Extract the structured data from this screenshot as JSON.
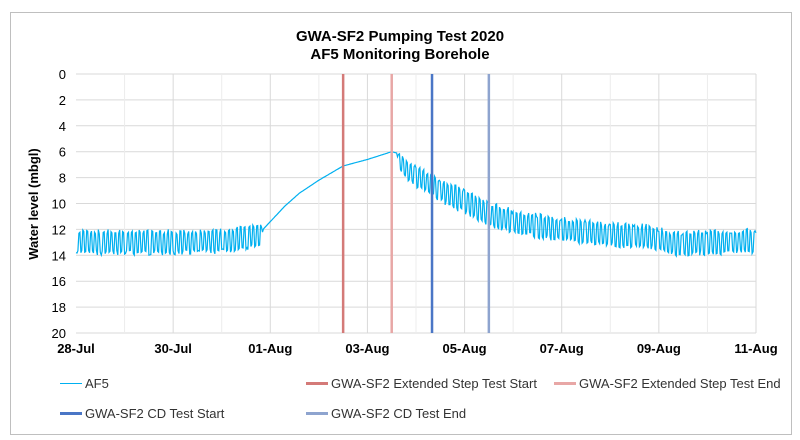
{
  "chart_data": {
    "type": "line",
    "title": [
      "GWA-SF2 Pumping Test 2020",
      "AF5 Monitoring Borehole"
    ],
    "xlabel": "",
    "ylabel": "Water level (mbgl)",
    "x_unit": "days since 28-Jul",
    "xlim": [
      0,
      14
    ],
    "ylim": [
      0,
      20
    ],
    "y_inverted": true,
    "y_ticks": [
      "0",
      "2",
      "4",
      "6",
      "8",
      "10",
      "12",
      "14",
      "16",
      "18",
      "20"
    ],
    "x_ticks": [
      {
        "x": 0,
        "label": "28-Jul"
      },
      {
        "x": 2,
        "label": "30-Jul"
      },
      {
        "x": 4,
        "label": "01-Aug"
      },
      {
        "x": 6,
        "label": "03-Aug"
      },
      {
        "x": 8,
        "label": "05-Aug"
      },
      {
        "x": 10,
        "label": "07-Aug"
      },
      {
        "x": 12,
        "label": "09-Aug"
      },
      {
        "x": 14,
        "label": "11-Aug"
      }
    ],
    "grid": true,
    "series": [
      {
        "name": "AF5",
        "color": "#00b0f0",
        "points_x_level_oscillation": [
          [
            0,
            13.0,
            1.0
          ],
          [
            1,
            13.0,
            1.0
          ],
          [
            2,
            13.0,
            1.0
          ],
          [
            3,
            12.9,
            1.0
          ],
          [
            3.8,
            12.5,
            0.9
          ],
          [
            3.85,
            12.0,
            0
          ],
          [
            4.1,
            11.0,
            0
          ],
          [
            4.3,
            10.2,
            0
          ],
          [
            4.6,
            9.2,
            0
          ],
          [
            5.0,
            8.2,
            0
          ],
          [
            5.5,
            7.1,
            0
          ],
          [
            6.0,
            6.6,
            0
          ],
          [
            6.5,
            6.0,
            0
          ],
          [
            6.6,
            6.1,
            0
          ],
          [
            6.7,
            7.0,
            0.8
          ],
          [
            7.0,
            7.9,
            0.9
          ],
          [
            7.33,
            8.6,
            0.9
          ],
          [
            7.7,
            9.4,
            1.0
          ],
          [
            8.0,
            9.8,
            1.0
          ],
          [
            8.5,
            10.8,
            1.0
          ],
          [
            9.0,
            11.4,
            1.0
          ],
          [
            10.0,
            12.0,
            1.0
          ],
          [
            11.0,
            12.4,
            1.0
          ],
          [
            11.9,
            12.6,
            1.0
          ],
          [
            12.2,
            13.1,
            1.0
          ],
          [
            13.0,
            13.0,
            1.0
          ],
          [
            14.0,
            12.9,
            1.0
          ]
        ]
      },
      {
        "name": "GWA-SF2 Extended Step Test Start",
        "color": "#d47a78",
        "x": 5.5
      },
      {
        "name": "GWA-SF2 Extended Step Test End",
        "color": "#e8a7a6",
        "x": 6.5
      },
      {
        "name": "GWA-SF2 CD Test Start",
        "color": "#4a76c6",
        "x": 7.33
      },
      {
        "name": "GWA-SF2 CD Test End",
        "color": "#8ea4cf",
        "x": 8.5
      }
    ],
    "legend_position": "bottom"
  }
}
